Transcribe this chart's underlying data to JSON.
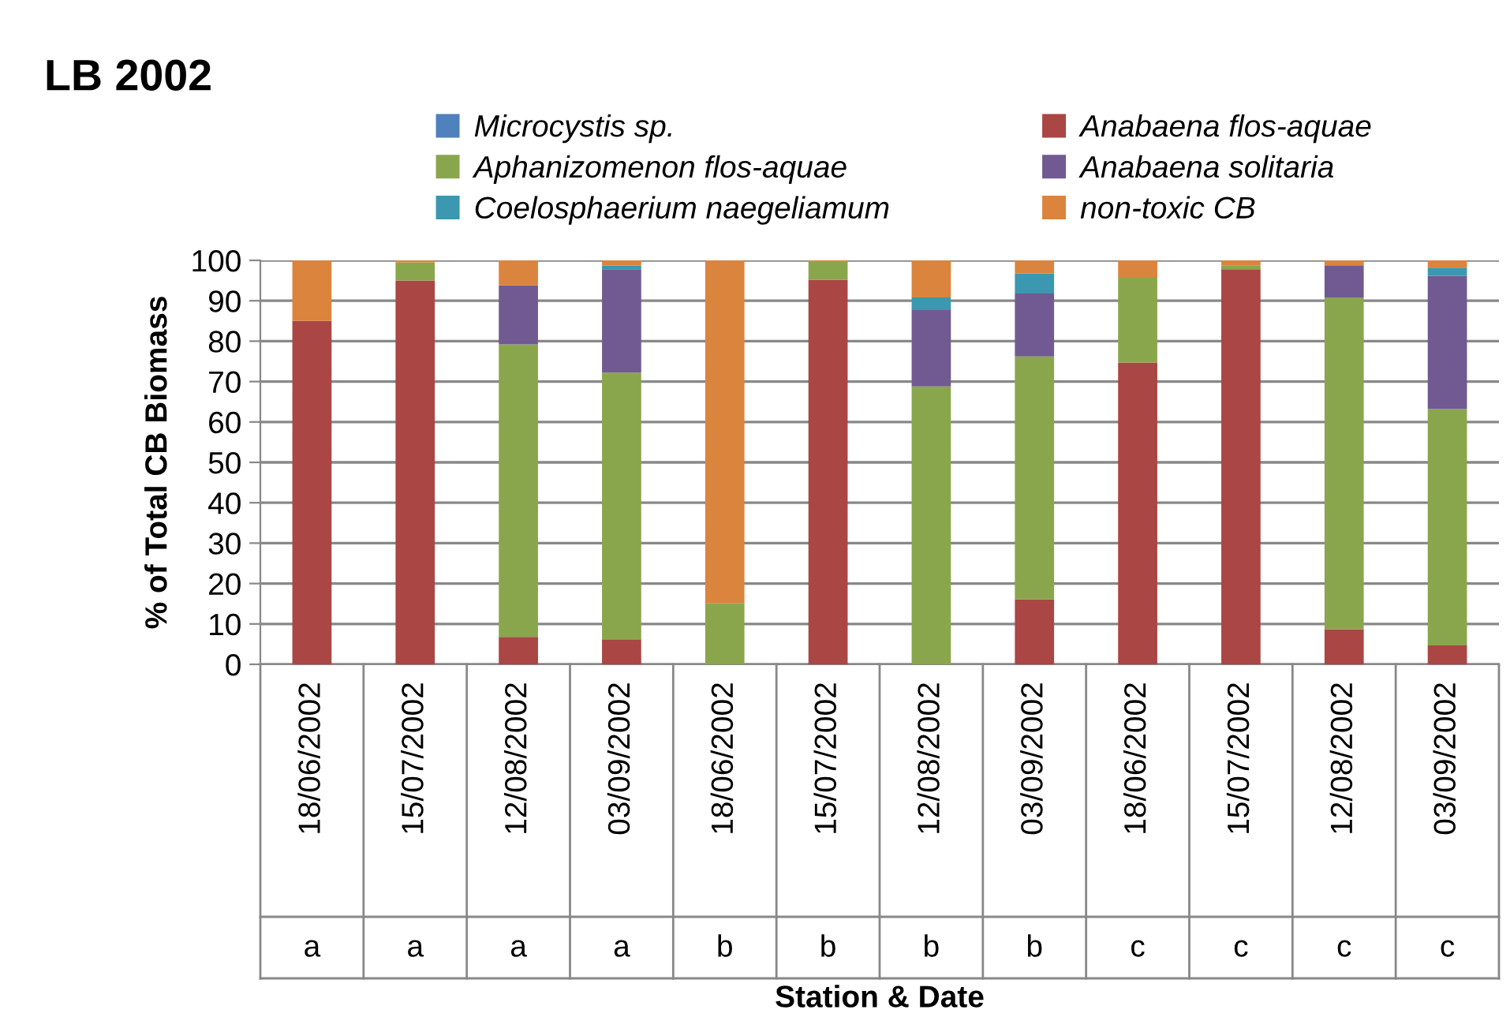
{
  "chart_data": {
    "type": "bar",
    "stacked": true,
    "title": "LB 2002",
    "xlabel": "Station & Date",
    "ylabel": "% of Total CB Biomass",
    "categories": [
      "18/06/2002",
      "15/07/2002",
      "12/08/2002",
      "03/09/2002",
      "18/06/2002",
      "15/07/2002",
      "12/08/2002",
      "03/09/2002",
      "18/06/2002",
      "15/07/2002",
      "12/08/2002",
      "03/09/2002"
    ],
    "annotations": [
      "a",
      "a",
      "a",
      "a",
      "b",
      "b",
      "b",
      "b",
      "c",
      "c",
      "c",
      "c"
    ],
    "series": [
      {
        "name": "Microcystis sp.",
        "color": "#4f81bd",
        "values": [
          0,
          0,
          0,
          0,
          0,
          0,
          0,
          0,
          0,
          0,
          0,
          0
        ]
      },
      {
        "name": "Anabaena flos-aquae",
        "color": "#aa4644",
        "values": [
          85,
          95,
          6.8,
          6.2,
          0,
          95.2,
          0,
          16.1,
          74.7,
          97.8,
          8.7,
          4.7
        ]
      },
      {
        "name": "Aphanizomenon flos-aquae",
        "color": "#8aa64c",
        "values": [
          0,
          4.5,
          72.4,
          66,
          15.2,
          4.5,
          68.8,
          60.1,
          21,
          0.9,
          82.1,
          58.5
        ]
      },
      {
        "name": "Anabaena solitaria",
        "color": "#715a91",
        "values": [
          0,
          0,
          14.6,
          25.6,
          0,
          0,
          18.9,
          15.6,
          0,
          0,
          8,
          33
        ]
      },
      {
        "name": "Coelosphaerium naegeliamum",
        "color": "#3c97b0",
        "values": [
          0,
          0,
          0,
          0.9,
          0,
          0,
          3.1,
          5,
          0,
          0,
          0,
          2
        ]
      },
      {
        "name": "non-toxic CB",
        "color": "#db843d",
        "values": [
          15,
          0.5,
          6.2,
          1.3,
          84.8,
          0.3,
          9.2,
          3.2,
          4.3,
          1.3,
          1.2,
          1.8
        ]
      }
    ],
    "ylim": [
      0,
      100
    ],
    "yticks": [
      0,
      10,
      20,
      30,
      40,
      50,
      60,
      70,
      80,
      90,
      100
    ],
    "grid": "y",
    "legend": "top"
  }
}
